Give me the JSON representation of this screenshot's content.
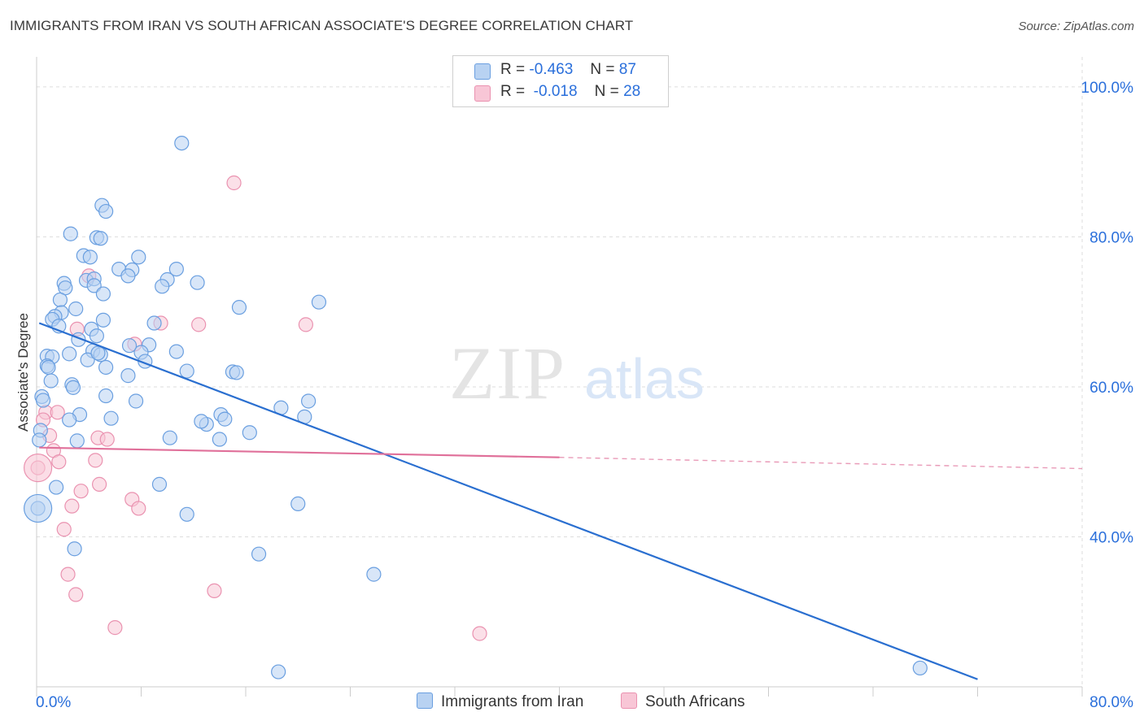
{
  "header": {
    "title": "IMMIGRANTS FROM IRAN VS SOUTH AFRICAN ASSOCIATE'S DEGREE CORRELATION CHART",
    "source": "Source: ZipAtlas.com"
  },
  "legend": {
    "series1": {
      "r_label": "R =",
      "r_value": "-0.463",
      "n_label": "N =",
      "n_value": "87"
    },
    "series2": {
      "r_label": "R =",
      "r_value": "-0.018",
      "n_label": "N =",
      "n_value": "28"
    }
  },
  "bottom_legend": {
    "series1": "Immigrants from Iran",
    "series2": "South Africans"
  },
  "watermark": {
    "zip": "ZIP",
    "atlas": "atlas"
  },
  "colors": {
    "series1_fill": "#b8d2f2",
    "series1_stroke": "#6a9fe0",
    "series1_line": "#2a6fd0",
    "series2_fill": "#f8c6d6",
    "series2_stroke": "#ea92b0",
    "series2_line": "#e0709a",
    "value_text": "#2a6fdb"
  },
  "chart_data": {
    "type": "scatter",
    "title": "IMMIGRANTS FROM IRAN VS SOUTH AFRICAN ASSOCIATE'S DEGREE CORRELATION CHART",
    "xlabel": "",
    "ylabel": "Associate's Degree",
    "xlim": [
      0,
      80
    ],
    "ylim": [
      20,
      104
    ],
    "x_tick_labels": [
      {
        "value": 0,
        "label": "0.0%"
      },
      {
        "value": 80,
        "label": "80.0%"
      }
    ],
    "y_tick_labels": [
      {
        "value": 100,
        "label": "100.0%"
      },
      {
        "value": 80,
        "label": "80.0%"
      },
      {
        "value": 60,
        "label": "60.0%"
      },
      {
        "value": 40,
        "label": "40.0%"
      }
    ],
    "grid": true,
    "series": [
      {
        "name": "Immigrants from Iran",
        "r": -0.463,
        "n": 87,
        "trend": {
          "x0": 0.2,
          "y0": 68.5,
          "x1": 72.0,
          "y1": 21.0
        },
        "points": [
          [
            11.1,
            92.5
          ],
          [
            5.0,
            84.2
          ],
          [
            5.3,
            83.4
          ],
          [
            2.6,
            80.4
          ],
          [
            4.6,
            79.9
          ],
          [
            4.9,
            79.8
          ],
          [
            3.6,
            77.5
          ],
          [
            4.1,
            77.3
          ],
          [
            7.8,
            77.3
          ],
          [
            6.3,
            75.7
          ],
          [
            7.3,
            75.6
          ],
          [
            10.7,
            75.7
          ],
          [
            7.0,
            74.8
          ],
          [
            10.0,
            74.3
          ],
          [
            12.3,
            73.9
          ],
          [
            2.1,
            73.8
          ],
          [
            3.8,
            74.2
          ],
          [
            4.4,
            74.4
          ],
          [
            2.2,
            73.2
          ],
          [
            9.6,
            73.4
          ],
          [
            4.4,
            73.5
          ],
          [
            5.1,
            72.4
          ],
          [
            1.8,
            71.6
          ],
          [
            21.6,
            71.3
          ],
          [
            15.5,
            70.6
          ],
          [
            3.0,
            70.4
          ],
          [
            1.9,
            69.9
          ],
          [
            1.4,
            69.4
          ],
          [
            1.2,
            69.0
          ],
          [
            5.1,
            68.9
          ],
          [
            1.7,
            68.1
          ],
          [
            4.2,
            67.7
          ],
          [
            4.6,
            66.8
          ],
          [
            8.6,
            65.6
          ],
          [
            4.3,
            64.8
          ],
          [
            8.0,
            64.6
          ],
          [
            10.7,
            64.7
          ],
          [
            2.5,
            64.4
          ],
          [
            4.9,
            64.3
          ],
          [
            0.8,
            64.1
          ],
          [
            1.2,
            64.0
          ],
          [
            3.9,
            63.6
          ],
          [
            8.3,
            63.4
          ],
          [
            0.8,
            62.8
          ],
          [
            0.9,
            62.6
          ],
          [
            5.3,
            62.6
          ],
          [
            11.5,
            62.1
          ],
          [
            15.0,
            62.0
          ],
          [
            15.3,
            61.9
          ],
          [
            7.0,
            61.5
          ],
          [
            1.1,
            60.8
          ],
          [
            2.7,
            60.3
          ],
          [
            2.8,
            59.9
          ],
          [
            5.3,
            58.8
          ],
          [
            0.4,
            58.7
          ],
          [
            0.5,
            58.2
          ],
          [
            7.6,
            58.1
          ],
          [
            20.8,
            58.1
          ],
          [
            18.7,
            57.2
          ],
          [
            3.3,
            56.3
          ],
          [
            14.1,
            56.3
          ],
          [
            14.4,
            55.7
          ],
          [
            5.7,
            55.8
          ],
          [
            2.5,
            55.6
          ],
          [
            13.0,
            55.0
          ],
          [
            0.3,
            54.2
          ],
          [
            16.3,
            53.9
          ],
          [
            10.2,
            53.2
          ],
          [
            14.0,
            53.0
          ],
          [
            3.1,
            52.8
          ],
          [
            0.2,
            52.9
          ],
          [
            9.4,
            47.0
          ],
          [
            1.5,
            46.6
          ],
          [
            0.1,
            43.8
          ],
          [
            11.5,
            43.0
          ],
          [
            20.0,
            44.4
          ],
          [
            2.9,
            38.4
          ],
          [
            17.0,
            37.7
          ],
          [
            25.8,
            35.0
          ],
          [
            18.5,
            22.0
          ],
          [
            67.6,
            22.5
          ],
          [
            7.1,
            65.5
          ],
          [
            12.6,
            55.4
          ],
          [
            20.5,
            56.0
          ],
          [
            3.2,
            66.3
          ],
          [
            4.7,
            64.5
          ],
          [
            9.0,
            68.5
          ]
        ],
        "large_points": [
          [
            0.1,
            43.8
          ]
        ]
      },
      {
        "name": "South Africans",
        "r": -0.018,
        "n": 28,
        "trend": {
          "x0": 0.2,
          "y0": 51.9,
          "x1": 40.0,
          "y1": 50.6
        },
        "trend_dashed": {
          "x0": 40.0,
          "y0": 50.6,
          "x1": 80.0,
          "y1": 49.1
        },
        "points": [
          [
            15.1,
            87.2
          ],
          [
            4.0,
            74.8
          ],
          [
            9.5,
            68.5
          ],
          [
            12.4,
            68.3
          ],
          [
            20.6,
            68.3
          ],
          [
            3.1,
            67.7
          ],
          [
            7.5,
            65.7
          ],
          [
            0.7,
            56.6
          ],
          [
            1.6,
            56.6
          ],
          [
            0.5,
            55.6
          ],
          [
            1.0,
            53.5
          ],
          [
            4.7,
            53.2
          ],
          [
            5.4,
            53.0
          ],
          [
            1.3,
            51.5
          ],
          [
            1.7,
            50.0
          ],
          [
            4.5,
            50.2
          ],
          [
            0.1,
            49.2
          ],
          [
            4.8,
            47.0
          ],
          [
            3.4,
            46.1
          ],
          [
            7.3,
            45.0
          ],
          [
            7.8,
            43.8
          ],
          [
            2.7,
            44.1
          ],
          [
            2.1,
            41.0
          ],
          [
            2.4,
            35.0
          ],
          [
            3.0,
            32.3
          ],
          [
            13.6,
            32.8
          ],
          [
            6.0,
            27.9
          ],
          [
            33.9,
            27.1
          ]
        ],
        "large_points": [
          [
            0.1,
            49.2
          ]
        ]
      }
    ]
  }
}
